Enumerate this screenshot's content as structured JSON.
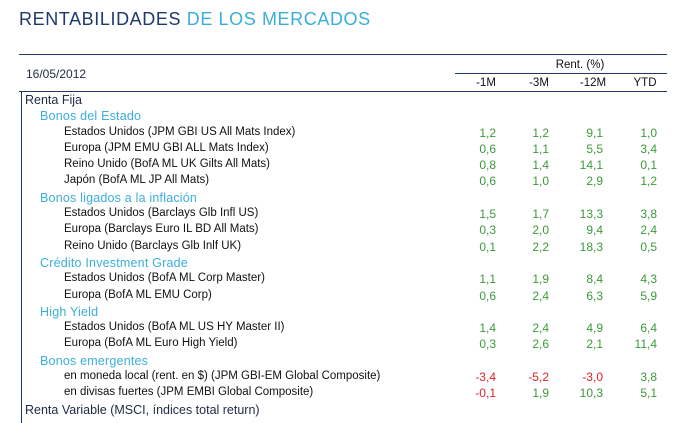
{
  "title": {
    "part1": "RENTABILIDADES",
    "part2": "DE LOS MERCADOS"
  },
  "date": "16/05/2012",
  "header": {
    "group_label": "Rent. (%)",
    "columns": [
      "-1M",
      "-3M",
      "-12M",
      "YTD"
    ]
  },
  "colors": {
    "positive": "#3d9a3a",
    "negative": "#e0202a",
    "accent": "#3aaedb",
    "navy": "#1e3a6b"
  },
  "rows": [
    {
      "type": "cat",
      "label": "Renta Fija"
    },
    {
      "type": "sub",
      "label": "Bonos del Estado"
    },
    {
      "type": "item",
      "label": "Estados Unidos  (JPM GBI US All Mats Index)",
      "values": [
        "1,2",
        "1,2",
        "9,1",
        "1,0"
      ]
    },
    {
      "type": "item",
      "label": "Europa     (JPM EMU GBI ALL Mats Index)",
      "values": [
        "0,6",
        "1,1",
        "5,5",
        "3,4"
      ]
    },
    {
      "type": "item",
      "label": "Reino Unido (BofA ML UK Gilts All Mats)",
      "values": [
        "0,8",
        "1,4",
        "14,1",
        "0,1"
      ]
    },
    {
      "type": "item",
      "label": "Japón       (BofA ML JP All Mats)",
      "values": [
        "0,6",
        "1,0",
        "2,9",
        "1,2"
      ]
    },
    {
      "type": "sub",
      "label": "Bonos ligados a la inflación"
    },
    {
      "type": "item",
      "label": "Estados Unidos  (Barclays Glb Infl US)",
      "values": [
        "1,5",
        "1,7",
        "13,3",
        "3,8"
      ]
    },
    {
      "type": "item",
      "label": "Europa      (Barclays Euro IL BD All Mats)",
      "values": [
        "0,3",
        "2,0",
        "9,4",
        "2,4"
      ]
    },
    {
      "type": "item",
      "label": "Reino Unido (Barclays Glb Inlf UK)",
      "values": [
        "0,1",
        "2,2",
        "18,3",
        "0,5"
      ]
    },
    {
      "type": "sub",
      "label": "Crédito Investment Grade"
    },
    {
      "type": "item",
      "label": "Estados Unidos  (BofA ML Corp Master)",
      "values": [
        "1,1",
        "1,9",
        "8,4",
        "4,3"
      ]
    },
    {
      "type": "item",
      "label": "Europa    (BofA ML EMU Corp)",
      "values": [
        "0,6",
        "2,4",
        "6,3",
        "5,9"
      ]
    },
    {
      "type": "sub",
      "label": "High Yield"
    },
    {
      "type": "item",
      "label": "Estados Unidos  (BofA ML US HY Master II)",
      "values": [
        "1,4",
        "2,4",
        "4,9",
        "6,4"
      ]
    },
    {
      "type": "item",
      "label": "Europa   (BofA ML Euro High Yield)",
      "values": [
        "0,3",
        "2,6",
        "2,1",
        "11,4"
      ]
    },
    {
      "type": "sub",
      "label": "Bonos emergentes"
    },
    {
      "type": "item",
      "label": "en moneda local (rent. en $) (JPM GBI-EM Global Composite)",
      "values": [
        "-3,4",
        "-5,2",
        "-3,0",
        "3,8"
      ]
    },
    {
      "type": "item",
      "label": "en divisas fuertes (JPM EMBI Global Composite)",
      "values": [
        "-0,1",
        "1,9",
        "10,3",
        "5,1"
      ]
    },
    {
      "type": "cat",
      "label": "Renta Variable (MSCI, índices total return)"
    }
  ]
}
